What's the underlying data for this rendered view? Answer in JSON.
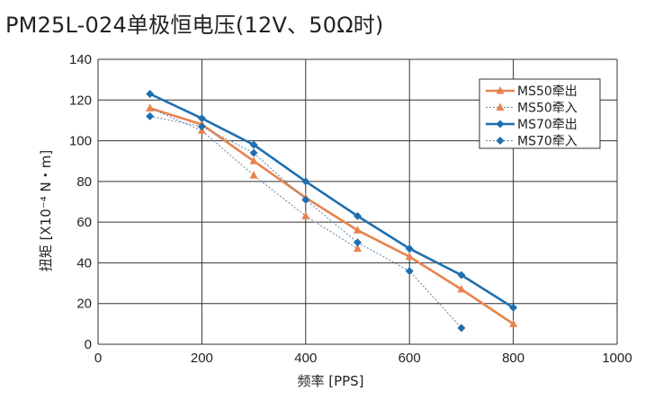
{
  "chart_data": {
    "type": "line",
    "title": "PM25L-024单极恒电压(12V、50Ω时)",
    "xlabel": "频率 [PPS]",
    "ylabel": "扭矩 [X10⁻⁴ N・m]",
    "xlim": [
      0,
      1000
    ],
    "ylim": [
      0,
      140
    ],
    "xticks": [
      "0",
      "200",
      "400",
      "600",
      "800",
      "1000"
    ],
    "yticks": [
      "0",
      "20",
      "40",
      "60",
      "80",
      "100",
      "120",
      "140"
    ],
    "grid": true,
    "legend_position": "top-right",
    "series": [
      {
        "name": "MS50牵出",
        "color": "#e8834e",
        "style": "solid",
        "marker": "triangle",
        "x": [
          100,
          200,
          300,
          400,
          500,
          600,
          700,
          800
        ],
        "y": [
          116,
          108,
          90,
          72,
          56,
          43,
          27,
          10
        ]
      },
      {
        "name": "MS50牵入",
        "color": "#e8834e",
        "style": "dotted",
        "marker": "triangle",
        "x": [
          100,
          200,
          300,
          400,
          500
        ],
        "y": [
          116,
          105,
          83,
          63,
          47
        ]
      },
      {
        "name": "MS70牵出",
        "color": "#1f6fae",
        "style": "solid",
        "marker": "diamond",
        "x": [
          100,
          200,
          300,
          400,
          500,
          600,
          700,
          800
        ],
        "y": [
          123,
          111,
          98,
          80,
          63,
          47,
          34,
          18
        ]
      },
      {
        "name": "MS70牵入",
        "color": "#1f6fae",
        "style": "dotted",
        "marker": "diamond",
        "x": [
          100,
          200,
          300,
          400,
          500,
          600,
          700
        ],
        "y": [
          112,
          107,
          94,
          71,
          50,
          36,
          8
        ]
      }
    ]
  }
}
